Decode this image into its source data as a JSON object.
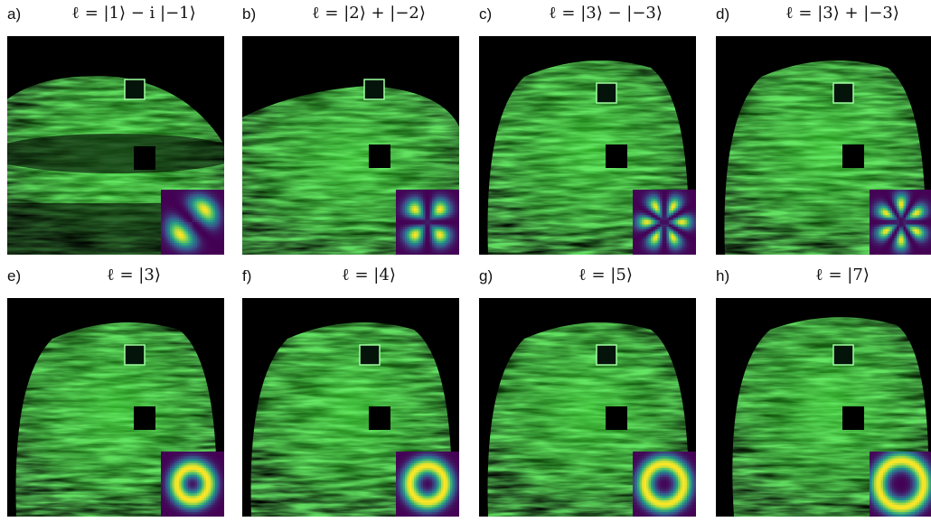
{
  "panels": [
    {
      "label": "a)",
      "title": "ℓ = |1⟩ − i |−1⟩",
      "mode": "petal",
      "petals": 2,
      "rotate": 45,
      "shape": "a"
    },
    {
      "label": "b)",
      "title": "ℓ = |2⟩ + |−2⟩",
      "mode": "petal",
      "petals": 4,
      "rotate": 45,
      "shape": "b"
    },
    {
      "label": "c)",
      "title": "ℓ = |3⟩ − |−3⟩",
      "mode": "petal",
      "petals": 6,
      "rotate": 0,
      "shape": "c"
    },
    {
      "label": "d)",
      "title": "ℓ = |3⟩ + |−3⟩",
      "mode": "petal",
      "petals": 6,
      "rotate": 30,
      "shape": "d"
    },
    {
      "label": "e)",
      "title": "ℓ = |3⟩",
      "mode": "ring",
      "ring": 0.5,
      "shape": "e"
    },
    {
      "label": "f)",
      "title": "ℓ = |4⟩",
      "mode": "ring",
      "ring": 0.56,
      "shape": "f"
    },
    {
      "label": "g)",
      "title": "ℓ = |5⟩",
      "mode": "ring",
      "ring": 0.62,
      "shape": "g"
    },
    {
      "label": "h)",
      "title": "ℓ = |7⟩",
      "mode": "ring",
      "ring": 0.72,
      "shape": "h"
    }
  ],
  "colors": {
    "background": "#ffffff",
    "photo_bg": "#000000",
    "laser_green": "#39d62a",
    "inset_dark": "#3b0f70",
    "inset_mid": "#21918c",
    "inset_bright": "#fde725"
  }
}
